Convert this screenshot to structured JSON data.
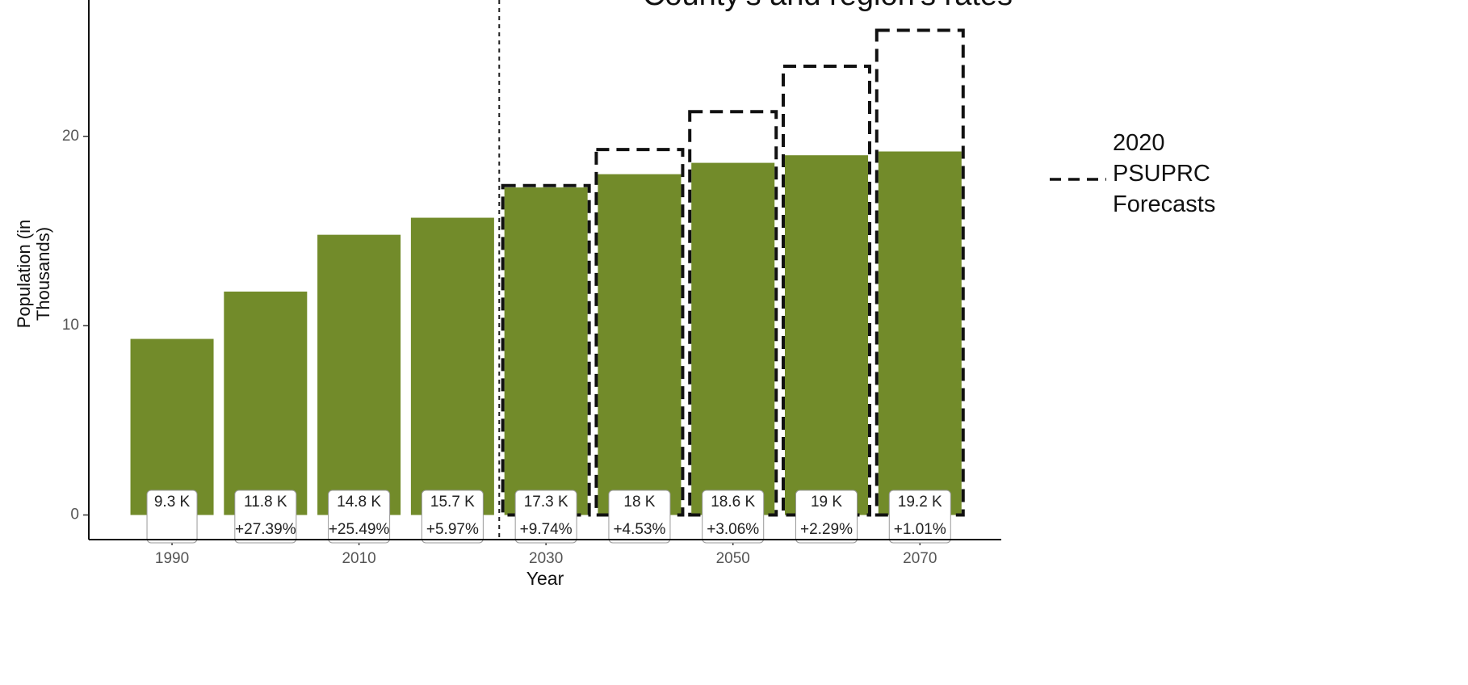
{
  "chart_data": {
    "type": "bar",
    "title": "County's and region's rates",
    "xlabel": "Year",
    "ylabel": "Population (in Thousands)",
    "x": [
      1990,
      2000,
      2010,
      2020,
      2030,
      2040,
      2050,
      2060,
      2070
    ],
    "xlim": [
      1981.1,
      2078.7
    ],
    "xticks": [
      1990,
      2010,
      2030,
      2050,
      2070
    ],
    "ylim": [
      -1.3,
      27.2
    ],
    "yticks": [
      0,
      10,
      20
    ],
    "reference_line": 2025,
    "series": [
      {
        "color": "#728b2a",
        "values": [
          9.3,
          11.8,
          14.8,
          15.7,
          17.3,
          18,
          18.6,
          19,
          19.2
        ],
        "value_labels": [
          "9.3 K",
          "11.8 K",
          "14.8 K",
          "15.7 K",
          "17.3 K",
          "18 K",
          "18.6 K",
          "19 K",
          "19.2 K"
        ],
        "change_labels": [
          null,
          "+27.39%",
          "+25.49%",
          "+5.97%",
          "+9.74%",
          "+4.53%",
          "+3.06%",
          "+2.29%",
          "+1.01%"
        ]
      },
      {
        "name": "2020 PSUPRC Forecasts",
        "color": "#111111",
        "values": [
          null,
          null,
          null,
          null,
          17.4,
          19.3,
          21.3,
          23.7,
          25.6
        ]
      }
    ]
  }
}
